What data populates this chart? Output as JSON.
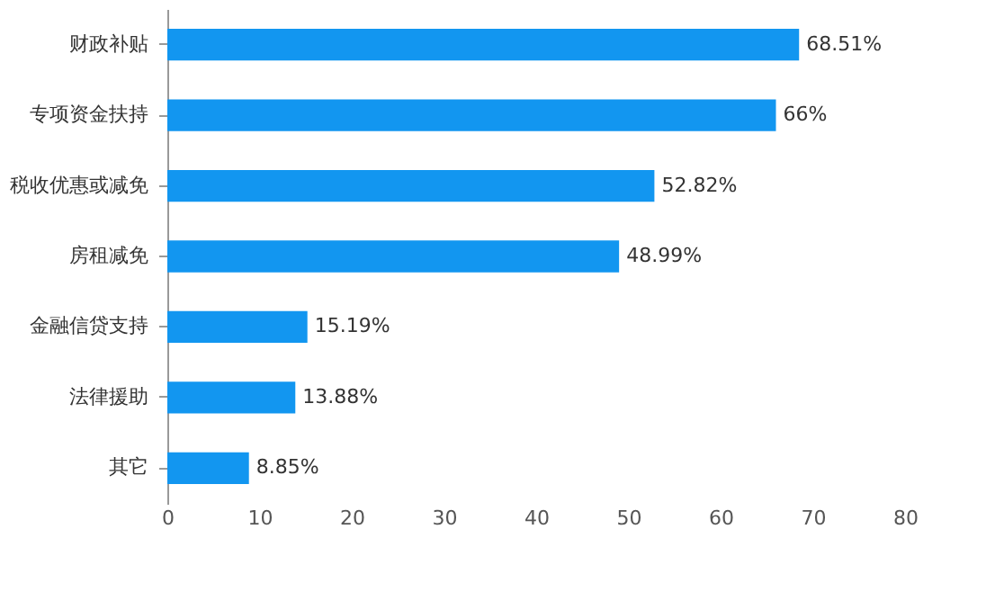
{
  "chart_data": {
    "type": "bar",
    "orientation": "horizontal",
    "categories": [
      "财政补贴",
      "专项资金扶持",
      "税收优惠或减免",
      "房租减免",
      "金融信贷支持",
      "法律援助",
      "其它"
    ],
    "values": [
      68.51,
      66,
      52.82,
      48.99,
      15.19,
      13.88,
      8.85
    ],
    "color": "#1296f0",
    "xlim": [
      0,
      80
    ],
    "xticks": [
      0,
      10,
      20,
      30,
      40,
      50,
      60,
      70,
      80
    ],
    "data_labels": true,
    "value_labels": [
      "68.51%",
      "66%",
      "52.82%",
      "48.99%",
      "15.19%",
      "13.88%",
      "8.85%"
    ],
    "grid": false
  }
}
